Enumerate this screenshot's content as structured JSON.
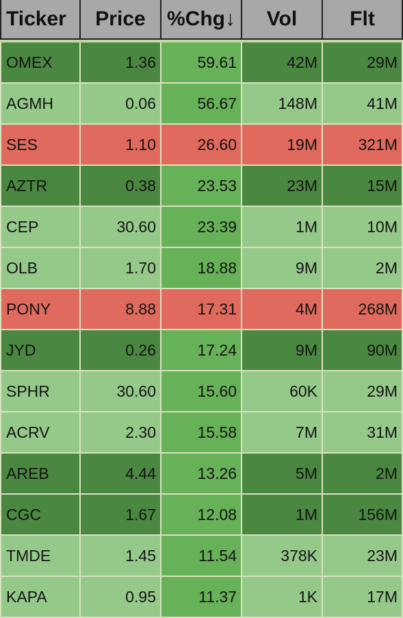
{
  "screener": {
    "columns": [
      "Ticker",
      "Price",
      "%Chg↓",
      "Vol",
      "Flt"
    ],
    "sort": {
      "column": "%Chg",
      "direction": "descending"
    },
    "colors": {
      "dark_green": "#4a8740",
      "light_green": "#95c98a",
      "mid_green": "#67b158",
      "red": "#df6a5d",
      "header": "#a8a8a8"
    },
    "rows": [
      {
        "ticker": "OMEX",
        "price": "1.36",
        "chg": "59.61",
        "vol": "42M",
        "flt": "29M",
        "tone": "dark"
      },
      {
        "ticker": "AGMH",
        "price": "0.06",
        "chg": "56.67",
        "vol": "148M",
        "flt": "41M",
        "tone": "light"
      },
      {
        "ticker": "SES",
        "price": "1.10",
        "chg": "26.60",
        "vol": "19M",
        "flt": "321M",
        "tone": "red"
      },
      {
        "ticker": "AZTR",
        "price": "0.38",
        "chg": "23.53",
        "vol": "23M",
        "flt": "15M",
        "tone": "dark"
      },
      {
        "ticker": "CEP",
        "price": "30.60",
        "chg": "23.39",
        "vol": "1M",
        "flt": "10M",
        "tone": "light"
      },
      {
        "ticker": "OLB",
        "price": "1.70",
        "chg": "18.88",
        "vol": "9M",
        "flt": "2M",
        "tone": "light"
      },
      {
        "ticker": "PONY",
        "price": "8.88",
        "chg": "17.31",
        "vol": "4M",
        "flt": "268M",
        "tone": "red"
      },
      {
        "ticker": "JYD",
        "price": "0.26",
        "chg": "17.24",
        "vol": "9M",
        "flt": "90M",
        "tone": "dark"
      },
      {
        "ticker": "SPHR",
        "price": "30.60",
        "chg": "15.60",
        "vol": "60K",
        "flt": "29M",
        "tone": "light"
      },
      {
        "ticker": "ACRV",
        "price": "2.30",
        "chg": "15.58",
        "vol": "7M",
        "flt": "31M",
        "tone": "light"
      },
      {
        "ticker": "AREB",
        "price": "4.44",
        "chg": "13.26",
        "vol": "5M",
        "flt": "2M",
        "tone": "dark"
      },
      {
        "ticker": "CGC",
        "price": "1.67",
        "chg": "12.08",
        "vol": "1M",
        "flt": "156M",
        "tone": "dark"
      },
      {
        "ticker": "TMDE",
        "price": "1.45",
        "chg": "11.54",
        "vol": "378K",
        "flt": "23M",
        "tone": "light"
      },
      {
        "ticker": "KAPA",
        "price": "0.95",
        "chg": "11.37",
        "vol": "1K",
        "flt": "17M",
        "tone": "light"
      }
    ]
  }
}
